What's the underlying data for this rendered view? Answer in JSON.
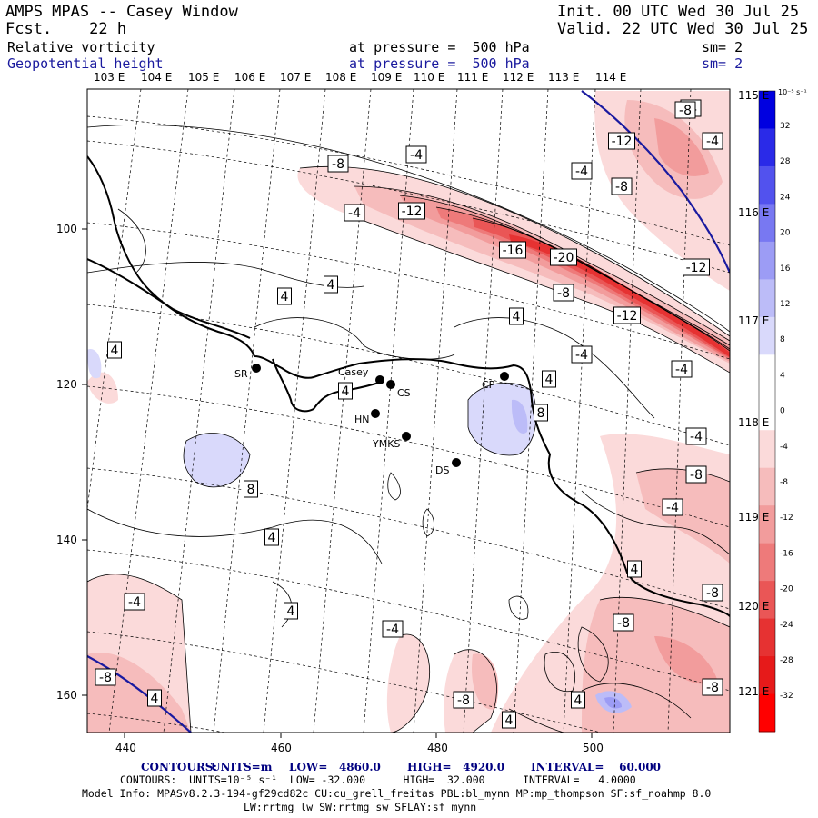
{
  "header": {
    "title": "AMPS MPAS -- Casey Window",
    "forecast": "Fcst.    22 h",
    "init": "Init. 00 UTC Wed 30 Jul 25",
    "valid": "Valid. 22 UTC Wed 30 Jul 25",
    "field1_name": "Relative vorticity",
    "field1_level": "at pressure =  500 hPa",
    "field1_smooth": "sm= 2",
    "field2_name": "Geopotential height",
    "field2_level": "at pressure =  500 hPa",
    "field2_smooth": "sm= 2"
  },
  "top_lon_labels": [
    "103 E",
    "104 E",
    "105 E",
    "106 E",
    "107 E",
    "108 E",
    "109 E",
    "110 E",
    "111 E",
    "112 E",
    "113 E",
    "114 E"
  ],
  "right_lon_labels": [
    "115 E",
    "116 E",
    "117 E",
    "118 E",
    "119 E",
    "120 E",
    "121 E"
  ],
  "y_ticks": [
    "100",
    "120",
    "140",
    "160"
  ],
  "x_ticks": [
    "440",
    "460",
    "480",
    "500"
  ],
  "colorbar": {
    "unit": "10⁻⁵ s⁻¹",
    "labels": [
      "32",
      "28",
      "24",
      "20",
      "16",
      "12",
      "8",
      "4",
      "0",
      "-4",
      "-8",
      "-12",
      "-16",
      "-20",
      "-24",
      "-28",
      "-32"
    ],
    "colors": [
      "#0000e0",
      "#2a2ae8",
      "#5252ee",
      "#7878f2",
      "#9c9cf5",
      "#bcbcf8",
      "#d9d9fb",
      "#ffffff",
      "#ffffff",
      "#fbdada",
      "#f6bcbc",
      "#f29c9c",
      "#ee7a7a",
      "#ea5656",
      "#e63232",
      "#e61a1a",
      "#ff0000"
    ]
  },
  "stations": [
    {
      "code": "SR"
    },
    {
      "code": "Casey"
    },
    {
      "code": "CS"
    },
    {
      "code": "HN"
    },
    {
      "code": "YMKS"
    },
    {
      "code": "DS"
    },
    {
      "code": "CP"
    }
  ],
  "contour_labels": [
    "-8",
    "-4",
    "-12",
    "-4",
    "-12",
    "-16",
    "-20",
    "-8",
    "-12",
    "-4",
    "-4",
    "-12",
    "-8",
    "-4",
    "-8",
    "-4",
    "-12",
    "4",
    "4",
    "4",
    "4",
    "4",
    "4",
    "8",
    "-4",
    "-4",
    "-8",
    "-4",
    "-8",
    "4",
    "8",
    "4",
    "4",
    "-4",
    "-4",
    "-8",
    "4",
    "4",
    "4",
    "-8",
    "-8",
    "-8",
    "-4",
    "-4",
    "-8"
  ],
  "footer": {
    "line1_label": "CONTOURS:",
    "line1_units": "UNITS=m",
    "line1_low": "LOW=   4860.0",
    "line1_high": "HIGH=   4920.0",
    "line1_interval": "INTERVAL=    60.000",
    "line2": "CONTOURS:  UNITS=10⁻⁵ s⁻¹  LOW= -32.000      HIGH=  32.000      INTERVAL=   4.0000",
    "line3": "Model Info: MPASv8.2.3-194-gf29cd82c CU:cu_grell_freitas PBL:bl_mynn MP:mp_thompson SF:sf_noahmp 8.0",
    "line4": "LW:rrtmg_lw SW:rrtmg_sw SFLAY:sf_mynn"
  }
}
